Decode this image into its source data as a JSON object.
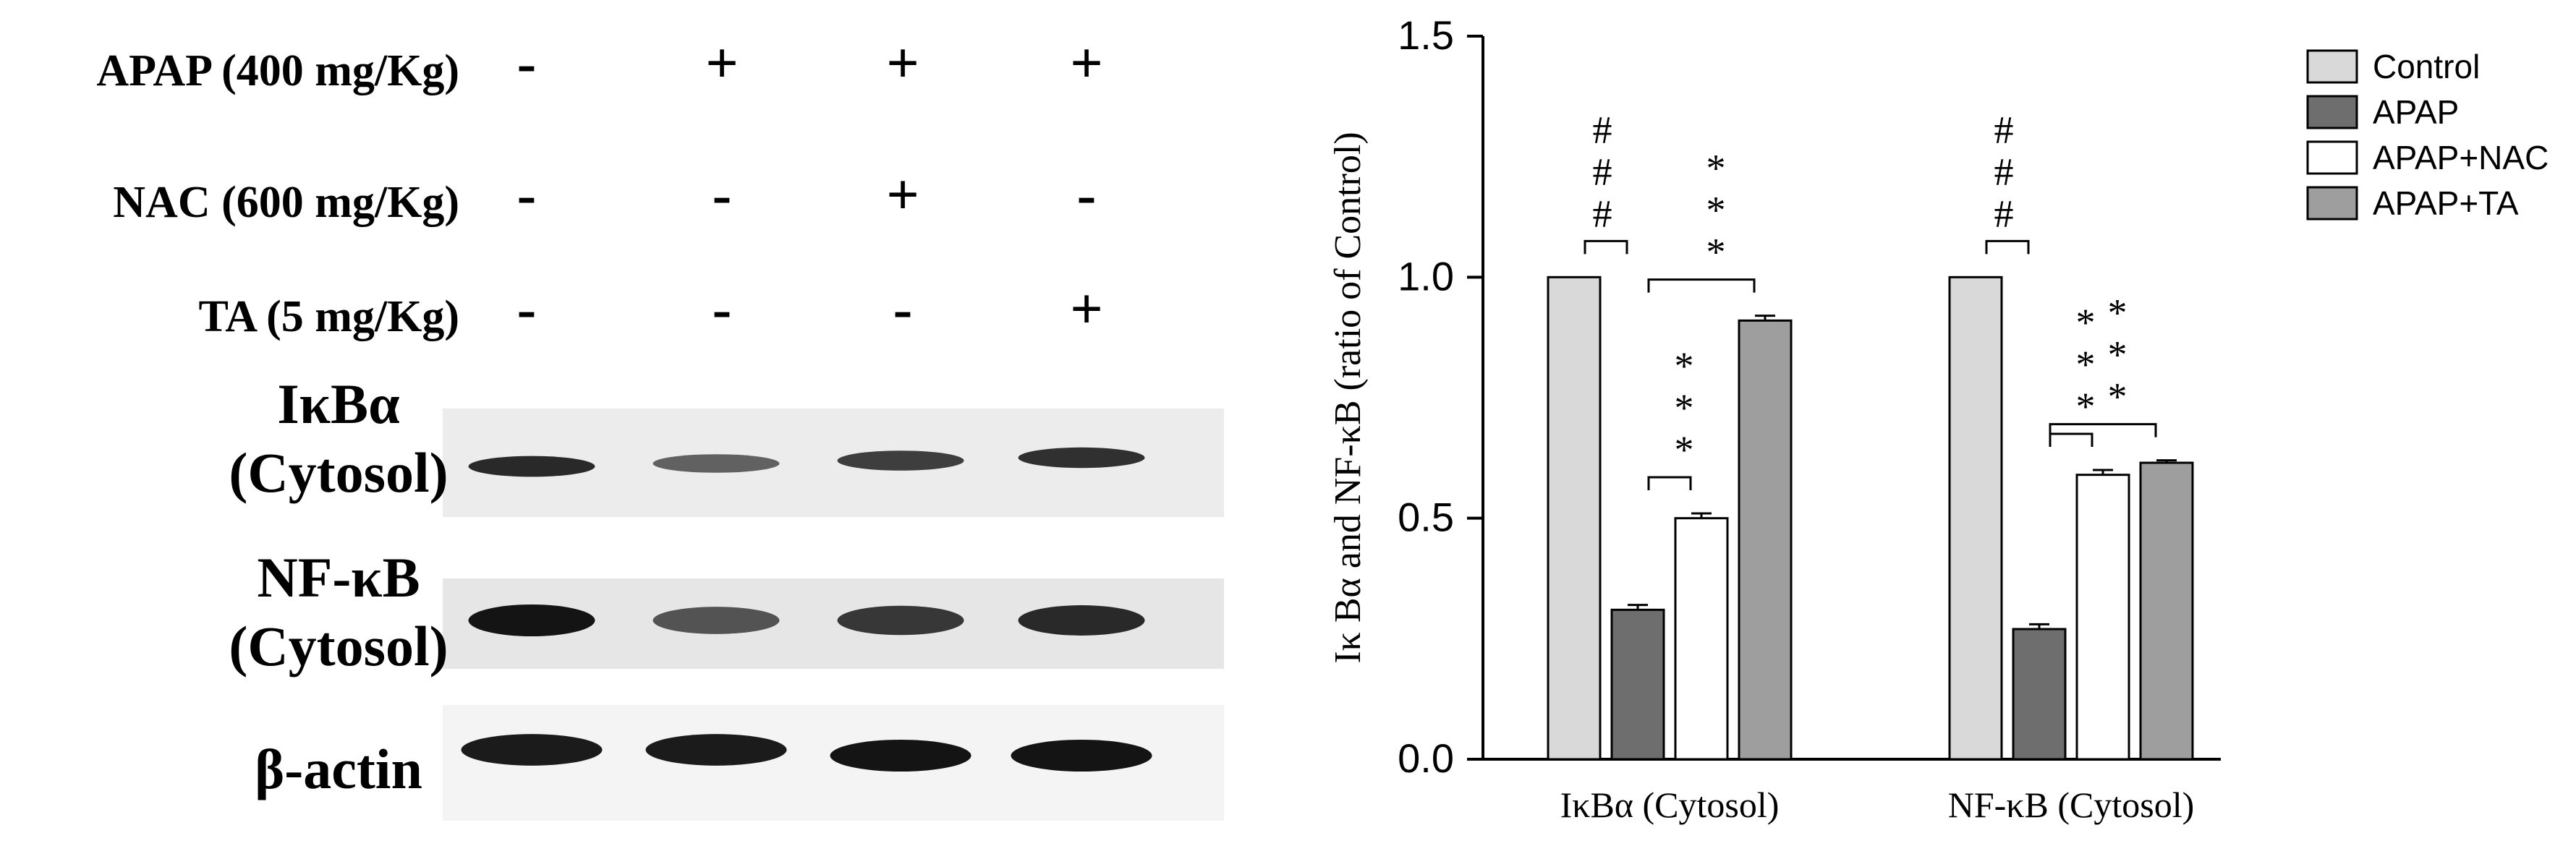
{
  "western_blot": {
    "treatments": [
      {
        "label": "APAP (400 mg/Kg)",
        "signs": [
          "-",
          "+",
          "+",
          "+"
        ]
      },
      {
        "label": "NAC (600 mg/Kg)",
        "signs": [
          "-",
          "-",
          "+",
          "-"
        ]
      },
      {
        "label": "TA (5 mg/Kg)",
        "signs": [
          "-",
          "-",
          "-",
          "+"
        ]
      }
    ],
    "blots": [
      {
        "label_line1": "IκBα",
        "label_line2": "(Cytosol)",
        "intensities": [
          0.85,
          0.45,
          0.7,
          0.8
        ]
      },
      {
        "label_line1": "NF-κB",
        "label_line2": "(Cytosol)",
        "intensities": [
          1.0,
          0.55,
          0.75,
          0.85
        ]
      },
      {
        "label_line1": "β-actin",
        "label_line2": "",
        "intensities": [
          0.95,
          0.95,
          1.0,
          1.0
        ]
      }
    ]
  },
  "chart_data": {
    "type": "bar",
    "categories": [
      "IκBα (Cytosol)",
      "NF-κB (Cytosol)"
    ],
    "series": [
      {
        "name": "Control",
        "values": [
          1.0,
          1.0
        ],
        "errors": [
          0.0,
          0.0
        ],
        "color": "#d9d9d9"
      },
      {
        "name": "APAP",
        "values": [
          0.31,
          0.27
        ],
        "errors": [
          0.01,
          0.01
        ],
        "color": "#6e6e6e"
      },
      {
        "name": "APAP+NAC",
        "values": [
          0.5,
          0.59
        ],
        "errors": [
          0.01,
          0.01
        ],
        "color": "#ffffff"
      },
      {
        "name": "APAP+TA",
        "values": [
          0.91,
          0.615
        ],
        "errors": [
          0.01,
          0.005
        ],
        "color": "#9e9e9e"
      }
    ],
    "ylabel": "Iκ Bα and NF-κB (ratio of Control)",
    "ylim": [
      0.0,
      1.5
    ],
    "yticks": [
      "0.0",
      "0.5",
      "1.0",
      "1.5"
    ],
    "legend_position": "top-right",
    "annotations": [
      {
        "text": "###",
        "category": 0,
        "from": 0,
        "to": 1
      },
      {
        "text": "***",
        "category": 0,
        "from": 1,
        "to": 3
      },
      {
        "text": "***",
        "category": 0,
        "from": 1,
        "to": 2
      },
      {
        "text": "###",
        "category": 1,
        "from": 0,
        "to": 1
      },
      {
        "text": "***",
        "category": 1,
        "from": 1,
        "to": 3
      },
      {
        "text": "***",
        "category": 1,
        "from": 1,
        "to": 2
      }
    ]
  }
}
